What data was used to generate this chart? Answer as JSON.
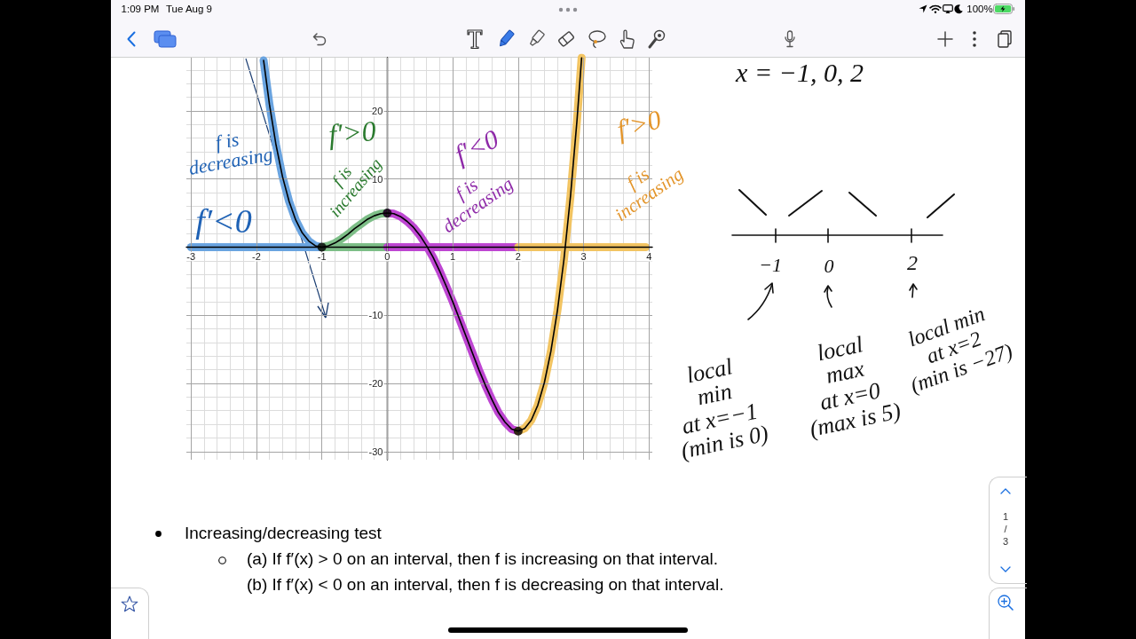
{
  "chart_data": {
    "type": "line",
    "xlim": [
      -3.07,
      4.05
    ],
    "ylim": [
      -31.2,
      27.8
    ],
    "xticks": [
      -3,
      -2,
      -1,
      0,
      1,
      2,
      3,
      4
    ],
    "yticks": [
      -30,
      -20,
      -10,
      {
        "value": 0,
        "label": null
      },
      10,
      20
    ],
    "grid": true,
    "series": [
      {
        "color": "#000000",
        "x": [
          -1.89,
          -1.8,
          -1.7,
          -1.6,
          -1.5,
          -1.4,
          -1.3,
          -1.2,
          -1.1,
          -1,
          -0.9,
          -0.8,
          -0.7,
          -0.6,
          -0.5,
          -0.4,
          -0.3,
          -0.2,
          -0.1,
          0,
          0.1,
          0.2,
          0.3,
          0.4,
          0.5,
          0.6,
          0.7,
          0.8,
          0.9,
          1,
          1.1,
          1.2,
          1.3,
          1.4,
          1.5,
          1.6,
          1.7,
          1.8,
          1.9,
          2,
          2.1,
          2.2,
          2.3,
          2.4,
          2.5,
          2.6,
          2.7,
          2.8,
          2.9,
          2.97
        ],
        "values": [
          27.4,
          20.9,
          15,
          10.3,
          6.7,
          4,
          2.1,
          0.9,
          0.2,
          0,
          0.2,
          0.6,
          1.2,
          1.9,
          2.7,
          3.4,
          4.1,
          4.6,
          4.9,
          5,
          4.9,
          4.5,
          3.8,
          2.9,
          1.7,
          0.2,
          -1.5,
          -3.5,
          -5.7,
          -8,
          -10.5,
          -13,
          -15.5,
          -18,
          -20.3,
          -22.4,
          -24.3,
          -25.7,
          -26.7,
          -27,
          -26.6,
          -25.4,
          -23.2,
          -19.9,
          -15.3,
          -9.3,
          -1.8,
          7.5,
          18.7,
          27.8
        ]
      },
      {
        "color": "#6aa4e0",
        "x": [
          -1.89,
          -1.8,
          -1.7,
          -1.6,
          -1.5,
          -1.4,
          -1.3,
          -1.2,
          -1.1,
          -1
        ],
        "values": [
          27.4,
          20.9,
          15,
          10.3,
          6.7,
          4,
          2.1,
          0.9,
          0.2,
          0
        ]
      },
      {
        "color": "#7dbe87",
        "x": [
          -1,
          -0.9,
          -0.8,
          -0.7,
          -0.6,
          -0.5,
          -0.4,
          -0.3,
          -0.2,
          -0.1,
          0
        ],
        "values": [
          0,
          0.2,
          0.6,
          1.2,
          1.9,
          2.7,
          3.4,
          4.1,
          4.6,
          4.9,
          5
        ]
      },
      {
        "color": "#be46d2",
        "x": [
          0,
          0.1,
          0.2,
          0.3,
          0.4,
          0.5,
          0.6,
          0.7,
          0.8,
          0.9,
          1,
          1.1,
          1.2,
          1.3,
          1.4,
          1.5,
          1.6,
          1.7,
          1.8,
          1.9,
          2
        ],
        "values": [
          5,
          4.9,
          4.5,
          3.8,
          2.9,
          1.7,
          0.2,
          -1.5,
          -3.5,
          -5.7,
          -8,
          -10.5,
          -13,
          -15.5,
          -18,
          -20.3,
          -22.4,
          -24.3,
          -25.7,
          -26.7,
          -27
        ]
      },
      {
        "color": "#f2c462",
        "x": [
          2,
          2.1,
          2.2,
          2.3,
          2.4,
          2.5,
          2.6,
          2.7,
          2.8,
          2.9,
          2.97
        ],
        "values": [
          -27,
          -26.6,
          -25.4,
          -23.2,
          -19.9,
          -15.3,
          -9.3,
          -1.8,
          7.5,
          18.7,
          27.8
        ]
      },
      {
        "color": "#6aa4e0",
        "x": [
          -3,
          -1
        ],
        "values": [
          0,
          0
        ]
      },
      {
        "color": "#7dbe87",
        "x": [
          -1,
          0
        ],
        "values": [
          0,
          0
        ]
      },
      {
        "color": "#be46d2",
        "x": [
          0,
          2
        ],
        "values": [
          0,
          0
        ]
      },
      {
        "color": "#f2c462",
        "x": [
          2,
          3.95
        ],
        "values": [
          0,
          0
        ]
      },
      {
        "type": "scatter",
        "color": "#000000",
        "marker": "circle",
        "x": [
          -1,
          0,
          2
        ],
        "values": [
          0,
          5,
          -27
        ]
      }
    ],
    "annotations": [
      "1:09 PM",
      "Tue Aug 9",
      "100%",
      "f is decreasing",
      "f′<0",
      "f′>0",
      "f is increasing",
      "f′<0",
      "f is decreasing",
      "f′>0",
      "f is increasing",
      "x = −1, 0, 2",
      "−1",
      "0",
      "2",
      "local min at x=−1 (min is 0)",
      "local max at x=0 (max is 5)",
      "local min at x=2 (min is −27)",
      "Increasing/decreasing test",
      "(a) If f′(x) > 0 on an interval, then f is increasing on that interval.",
      "(b) If f′(x) < 0 on an interval, then f is decreasing on that interval.",
      "1 / 3"
    ]
  }
}
